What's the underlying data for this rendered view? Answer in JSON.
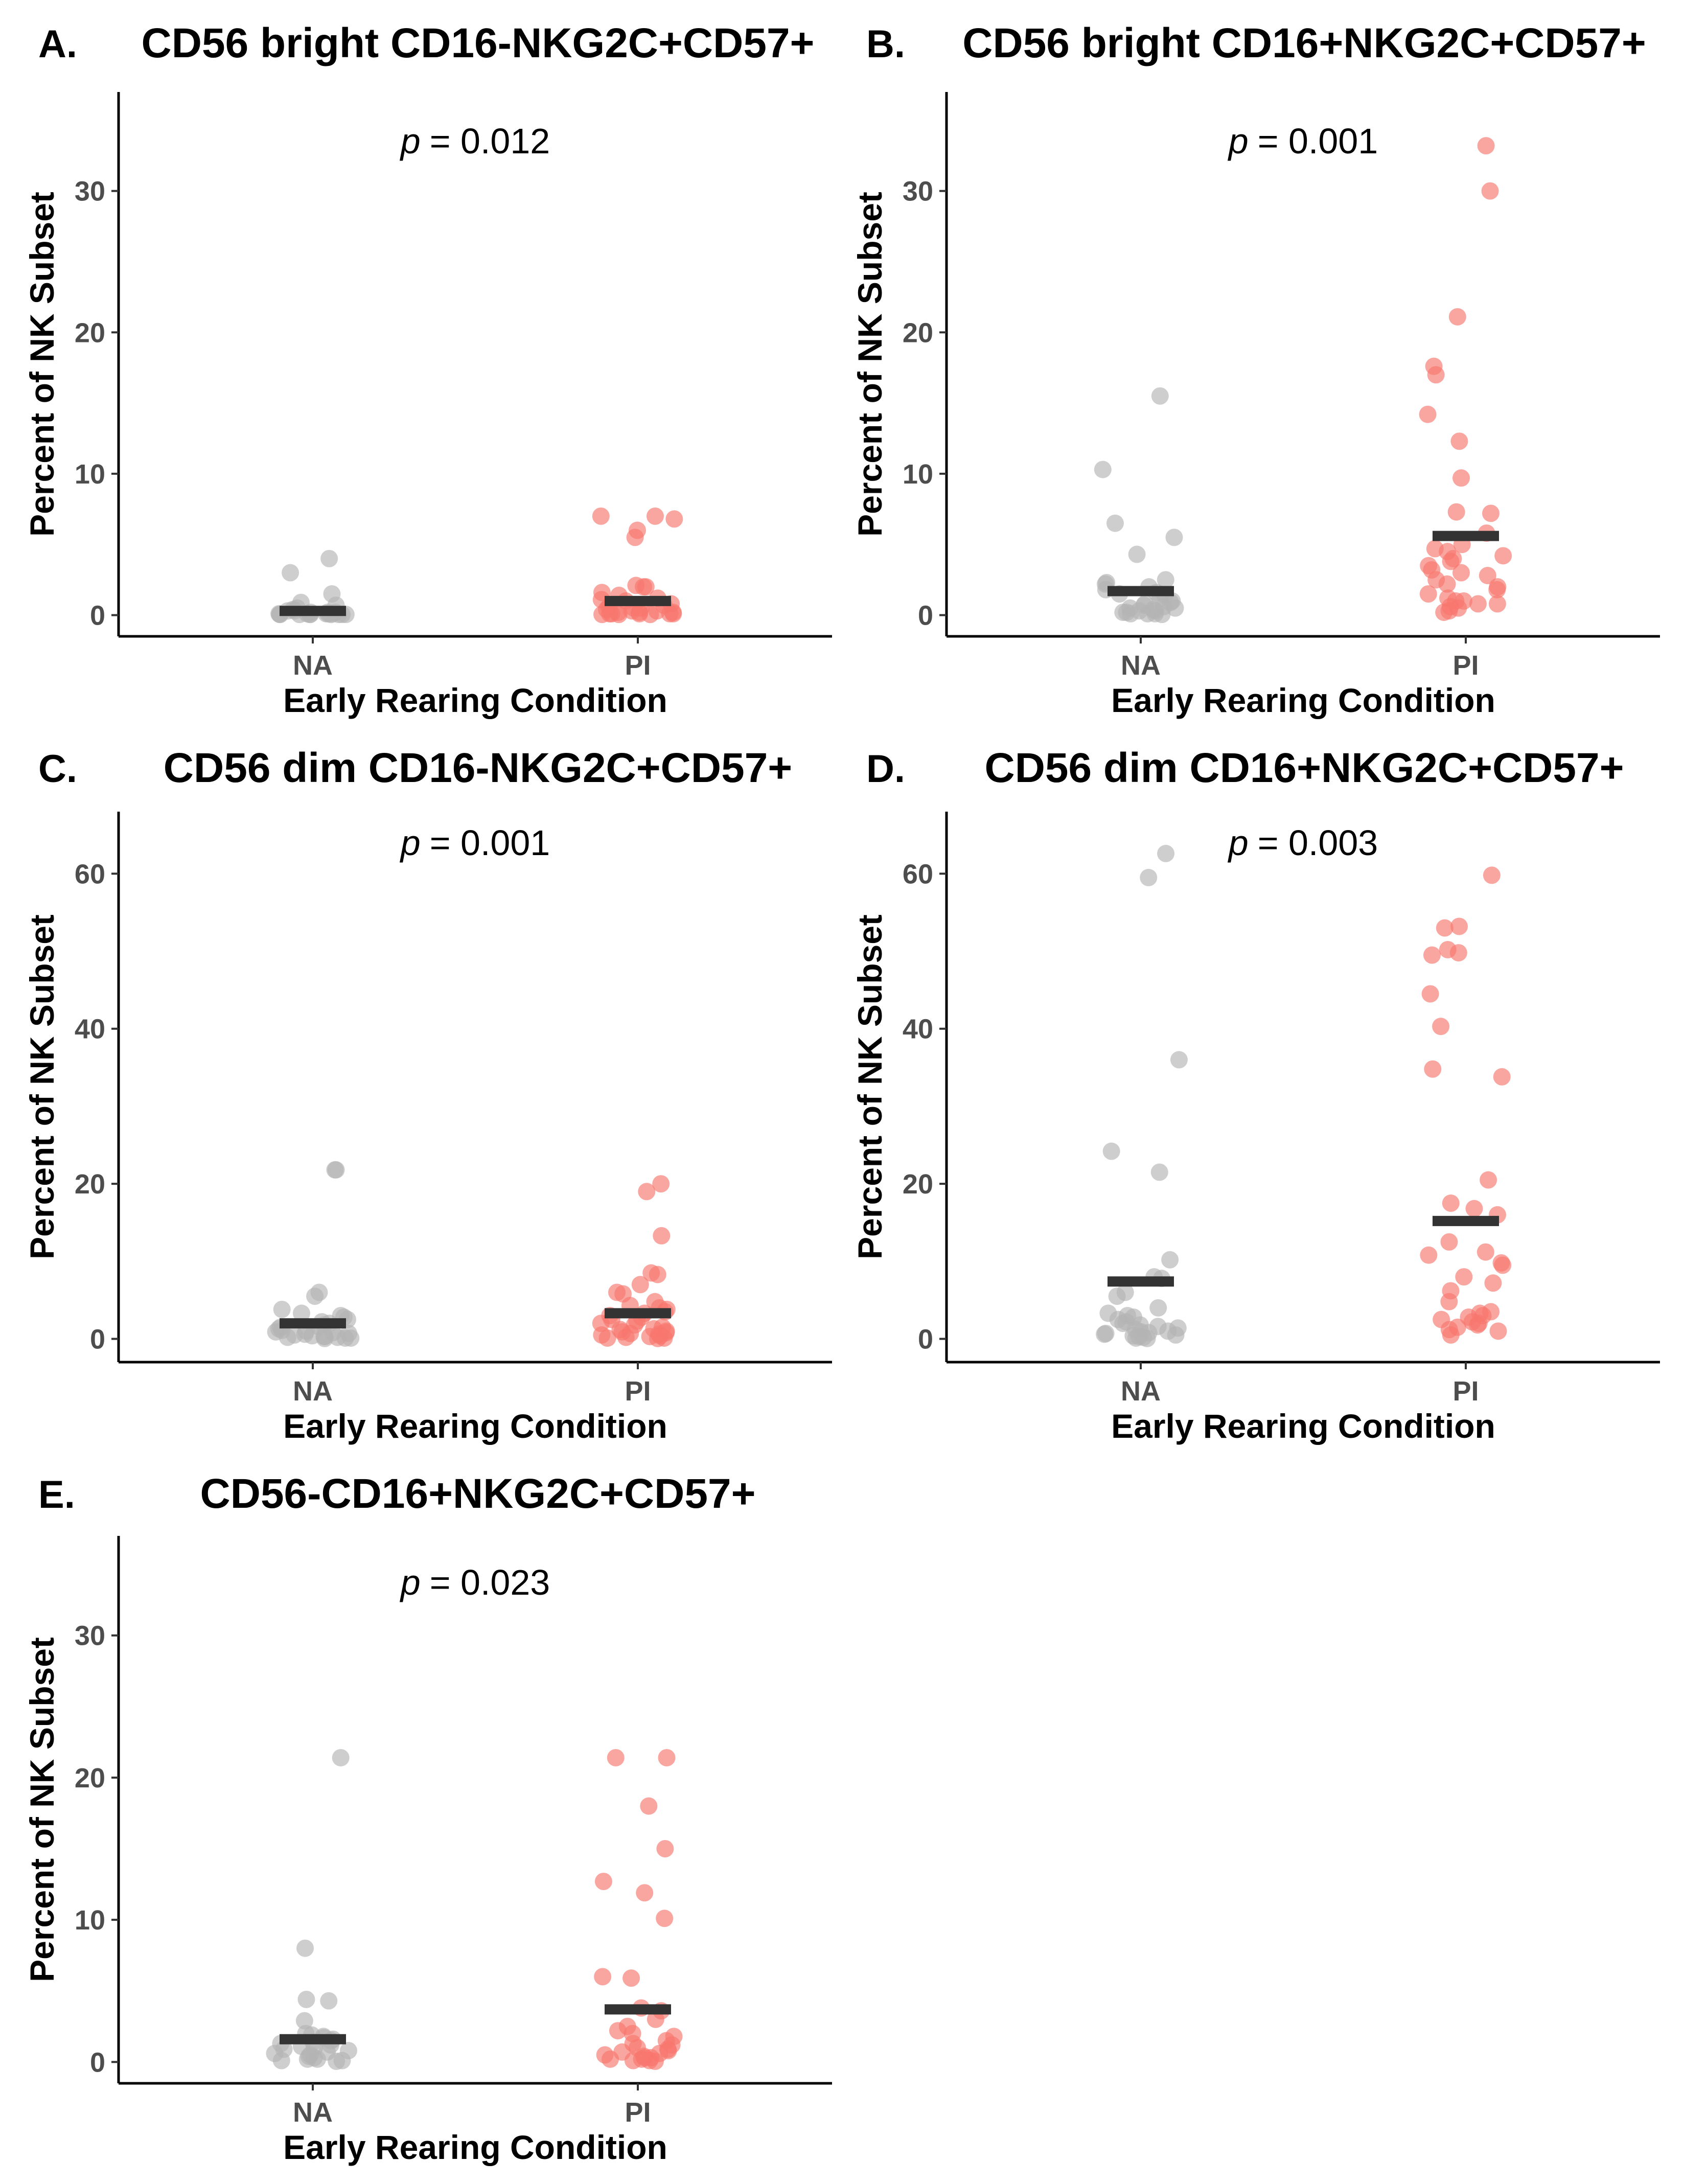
{
  "chart_data": [
    {
      "type": "scatter",
      "panel_label": "A.",
      "title": "CD56 bright CD16-NKG2C+CD57+",
      "xlabel": "Early Rearing Condition",
      "ylabel": "Percent of NK Subset",
      "categories": [
        "NA",
        "PI"
      ],
      "ylim": [
        -1.5,
        37
      ],
      "yticks": [
        0,
        10,
        20,
        30
      ],
      "y_tick_labels": [
        "0",
        "10",
        "20",
        "30"
      ],
      "p_symbol": "p",
      "p_text": "= 0.012",
      "colors": {
        "NA": "#b3b3b3",
        "PI": "#f8766d",
        "median": "#333333"
      },
      "series": [
        {
          "name": "NA",
          "median": 0.3,
          "points": [
            4.0,
            3.0,
            1.5,
            0.9,
            0.7,
            0.5,
            0.4,
            0.3,
            0.3,
            0.2,
            0.2,
            0.2,
            0.1,
            0.1,
            0.1,
            0.1,
            0.1,
            0.05,
            0.05,
            0.05,
            0.05,
            0.05,
            0.05,
            0.05,
            0.05,
            0.05
          ]
        },
        {
          "name": "PI",
          "median": 1.0,
          "points": [
            7.0,
            7.0,
            6.8,
            6.0,
            5.5,
            2.1,
            2.0,
            2.0,
            1.6,
            1.4,
            1.2,
            1.1,
            1.0,
            0.8,
            0.7,
            0.6,
            0.5,
            0.5,
            0.4,
            0.3,
            0.3,
            0.2,
            0.2,
            0.2,
            0.1,
            0.1,
            0.1,
            0.1,
            0.1,
            0.05,
            0.05,
            0.05
          ]
        }
      ]
    },
    {
      "type": "scatter",
      "panel_label": "B.",
      "title": "CD56 bright CD16+NKG2C+CD57+",
      "xlabel": "Early Rearing Condition",
      "ylabel": "Percent of NK Subset",
      "categories": [
        "NA",
        "PI"
      ],
      "ylim": [
        -1.5,
        37
      ],
      "yticks": [
        0,
        10,
        20,
        30
      ],
      "y_tick_labels": [
        "0",
        "10",
        "20",
        "30"
      ],
      "p_symbol": "p",
      "p_text": "= 0.001",
      "colors": {
        "NA": "#b3b3b3",
        "PI": "#f8766d",
        "median": "#333333"
      },
      "series": [
        {
          "name": "NA",
          "median": 1.7,
          "points": [
            15.5,
            10.3,
            6.5,
            5.5,
            4.3,
            2.5,
            2.3,
            2.2,
            2.0,
            1.8,
            1.6,
            1.5,
            1.4,
            1.2,
            1.0,
            0.9,
            0.8,
            0.7,
            0.6,
            0.5,
            0.5,
            0.4,
            0.3,
            0.3,
            0.2,
            0.2,
            0.1,
            0.1,
            0.1,
            0.05
          ]
        },
        {
          "name": "PI",
          "median": 5.6,
          "points": [
            33.2,
            30.0,
            21.1,
            17.6,
            17.0,
            14.2,
            12.3,
            9.7,
            7.3,
            7.2,
            5.8,
            5.0,
            4.7,
            4.5,
            4.2,
            4.0,
            3.8,
            3.5,
            3.2,
            3.0,
            2.8,
            2.5,
            2.2,
            2.0,
            1.8,
            1.5,
            1.2,
            1.0,
            1.0,
            0.8,
            0.8,
            0.6,
            0.5,
            0.3,
            0.2
          ]
        }
      ]
    },
    {
      "type": "scatter",
      "panel_label": "C.",
      "title": "CD56 dim CD16-NKG2C+CD57+",
      "xlabel": "Early Rearing Condition",
      "ylabel": "Percent of NK Subset",
      "categories": [
        "NA",
        "PI"
      ],
      "ylim": [
        -3,
        68
      ],
      "yticks": [
        0,
        20,
        40,
        60
      ],
      "y_tick_labels": [
        "0",
        "20",
        "40",
        "60"
      ],
      "p_symbol": "p",
      "p_text": "= 0.001",
      "colors": {
        "NA": "#b3b3b3",
        "PI": "#f8766d",
        "median": "#333333"
      },
      "series": [
        {
          "name": "NA",
          "median": 2.0,
          "points": [
            21.8,
            21.8,
            6.0,
            5.5,
            3.8,
            3.3,
            3.0,
            2.8,
            2.5,
            2.2,
            2.0,
            1.8,
            1.6,
            1.5,
            1.3,
            1.1,
            1.0,
            0.9,
            0.8,
            0.7,
            0.6,
            0.5,
            0.4,
            0.3,
            0.3,
            0.2,
            0.2,
            0.1,
            0.1,
            0.05
          ]
        },
        {
          "name": "PI",
          "median": 3.3,
          "points": [
            20.0,
            19.0,
            13.3,
            8.5,
            8.3,
            7.0,
            6.0,
            5.8,
            4.8,
            4.3,
            4.0,
            3.8,
            3.5,
            3.3,
            3.0,
            2.8,
            2.5,
            2.3,
            2.0,
            1.8,
            1.5,
            1.3,
            1.2,
            1.0,
            0.9,
            0.8,
            0.7,
            0.6,
            0.5,
            0.4,
            0.3,
            0.2,
            0.1,
            0.1,
            0.05
          ]
        }
      ]
    },
    {
      "type": "scatter",
      "panel_label": "D.",
      "title": "CD56 dim CD16+NKG2C+CD57+",
      "xlabel": "Early Rearing Condition",
      "ylabel": "Percent of NK Subset",
      "categories": [
        "NA",
        "PI"
      ],
      "ylim": [
        -3,
        68
      ],
      "yticks": [
        0,
        20,
        40,
        60
      ],
      "y_tick_labels": [
        "0",
        "20",
        "40",
        "60"
      ],
      "p_symbol": "p",
      "p_text": "= 0.003",
      "colors": {
        "NA": "#b3b3b3",
        "PI": "#f8766d",
        "median": "#333333"
      },
      "series": [
        {
          "name": "NA",
          "median": 7.4,
          "points": [
            62.6,
            59.5,
            36.0,
            24.2,
            21.5,
            10.2,
            8.0,
            7.8,
            6.0,
            5.5,
            4.0,
            3.3,
            3.0,
            2.8,
            2.5,
            2.2,
            2.0,
            1.8,
            1.6,
            1.4,
            1.2,
            1.0,
            0.9,
            0.8,
            0.7,
            0.6,
            0.5,
            0.4,
            0.3,
            0.2,
            0.1,
            0.05
          ]
        },
        {
          "name": "PI",
          "median": 15.2,
          "points": [
            59.8,
            53.2,
            53.0,
            50.2,
            49.8,
            49.5,
            44.5,
            40.3,
            34.8,
            33.8,
            20.5,
            17.5,
            16.8,
            16.0,
            12.5,
            11.2,
            10.8,
            9.8,
            9.5,
            8.0,
            7.2,
            6.2,
            4.8,
            3.5,
            3.3,
            3.0,
            2.8,
            2.5,
            2.2,
            2.0,
            1.8,
            1.5,
            1.2,
            1.0,
            0.5
          ]
        }
      ]
    },
    {
      "type": "scatter",
      "panel_label": "E.",
      "title": "CD56-CD16+NKG2C+CD57+",
      "xlabel": "Early Rearing Condition",
      "ylabel": "Percent of NK Subset",
      "categories": [
        "NA",
        "PI"
      ],
      "ylim": [
        -1.5,
        37
      ],
      "yticks": [
        0,
        10,
        20,
        30
      ],
      "y_tick_labels": [
        "0",
        "10",
        "20",
        "30"
      ],
      "p_symbol": "p",
      "p_text": "= 0.023",
      "colors": {
        "NA": "#b3b3b3",
        "PI": "#f8766d",
        "median": "#333333"
      },
      "series": [
        {
          "name": "NA",
          "median": 1.6,
          "points": [
            21.4,
            8.0,
            4.4,
            4.3,
            2.9,
            2.0,
            1.9,
            1.8,
            1.7,
            1.6,
            1.5,
            1.4,
            1.3,
            1.2,
            1.1,
            1.0,
            0.9,
            0.8,
            0.7,
            0.6,
            0.5,
            0.4,
            0.3,
            0.2,
            0.2,
            0.1,
            0.1,
            0.05
          ]
        },
        {
          "name": "PI",
          "median": 3.7,
          "points": [
            21.4,
            21.4,
            18.0,
            15.0,
            12.7,
            11.9,
            10.1,
            6.0,
            5.9,
            3.8,
            3.6,
            3.0,
            2.5,
            2.2,
            2.0,
            1.8,
            1.5,
            1.3,
            1.2,
            1.0,
            0.9,
            0.8,
            0.7,
            0.6,
            0.5,
            0.4,
            0.3,
            0.3,
            0.2,
            0.2,
            0.1,
            0.1,
            0.05
          ]
        }
      ]
    }
  ]
}
